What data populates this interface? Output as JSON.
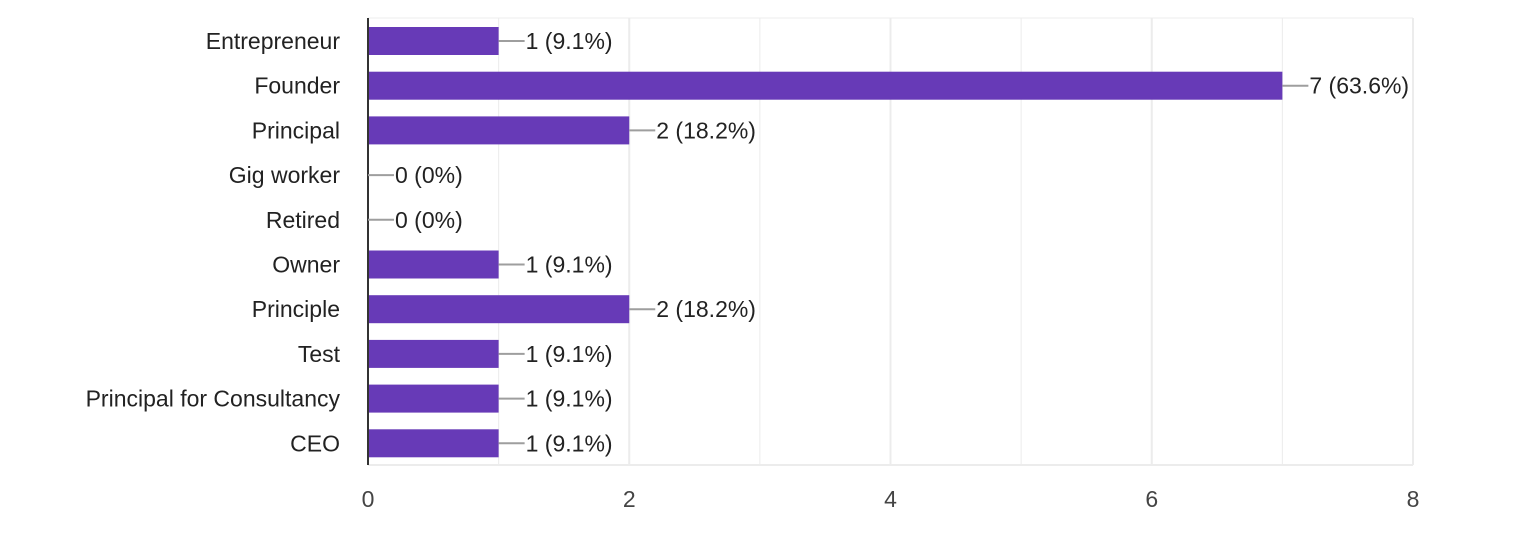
{
  "chart_data": {
    "type": "bar",
    "orientation": "horizontal",
    "title": "",
    "xlabel": "",
    "ylabel": "",
    "categories": [
      "Entrepreneur",
      "Founder",
      "Principal",
      "Gig worker",
      "Retired",
      "Owner",
      "Principle",
      "Test",
      "Principal for Consultancy",
      "CEO"
    ],
    "values": [
      1,
      7,
      2,
      0,
      0,
      1,
      2,
      1,
      1,
      1
    ],
    "data_labels": [
      "1 (9.1%)",
      "7 (63.6%)",
      "2 (18.2%)",
      "0 (0%)",
      "0 (0%)",
      "1 (9.1%)",
      "2 (18.2%)",
      "1 (9.1%)",
      "1 (9.1%)",
      "1 (9.1%)"
    ],
    "xlim": [
      0,
      8
    ],
    "x_ticks": [
      0,
      2,
      4,
      6,
      8
    ],
    "x_tick_labels": [
      "0",
      "2",
      "4",
      "6",
      "8"
    ],
    "minor_gridlines": [
      1,
      3,
      5,
      7
    ],
    "grid": true,
    "legend": "none",
    "colors": {
      "bar": "#673ab7",
      "gridline": "#ececec",
      "axis": "#333333",
      "connector": "#9e9e9e",
      "text": "#222222",
      "tick_text": "#444444"
    }
  }
}
